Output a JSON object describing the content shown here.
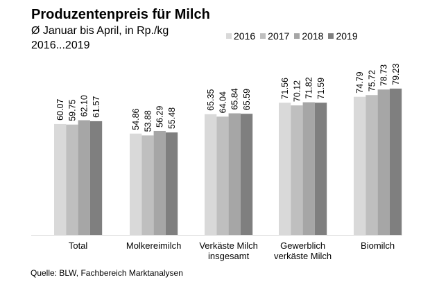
{
  "header": {
    "title": "Produzentenpreis für Milch",
    "subtitle": "Ø Januar bis April, in Rp./kg",
    "subtitle2": "2016...2019"
  },
  "source": "Quelle: BLW, Fachbereich Marktanalysen",
  "chart_data": {
    "type": "bar",
    "title": "Produzentenpreis für Milch",
    "subtitle": "Ø Januar bis April, in Rp./kg, 2016...2019",
    "xlabel": "",
    "ylabel": "Rp./kg",
    "ylim": [
      0,
      85
    ],
    "grid": false,
    "legend_position": "top-right",
    "categories": [
      [
        "Total"
      ],
      [
        "Molkereimilch"
      ],
      [
        "Verkäste Milch",
        "insgesamt"
      ],
      [
        "Gewerblich",
        "verkäste Milch"
      ],
      [
        "Biomilch"
      ]
    ],
    "series": [
      {
        "name": "2016",
        "color": "#d9d9d9",
        "values": [
          60.07,
          54.86,
          65.35,
          71.56,
          74.79
        ]
      },
      {
        "name": "2017",
        "color": "#bfbfbf",
        "values": [
          59.75,
          53.88,
          64.04,
          70.12,
          75.72
        ]
      },
      {
        "name": "2018",
        "color": "#a6a6a6",
        "values": [
          62.1,
          56.29,
          65.84,
          71.82,
          78.73
        ]
      },
      {
        "name": "2019",
        "color": "#7f7f7f",
        "values": [
          61.57,
          55.48,
          65.59,
          71.59,
          79.23
        ]
      }
    ]
  }
}
